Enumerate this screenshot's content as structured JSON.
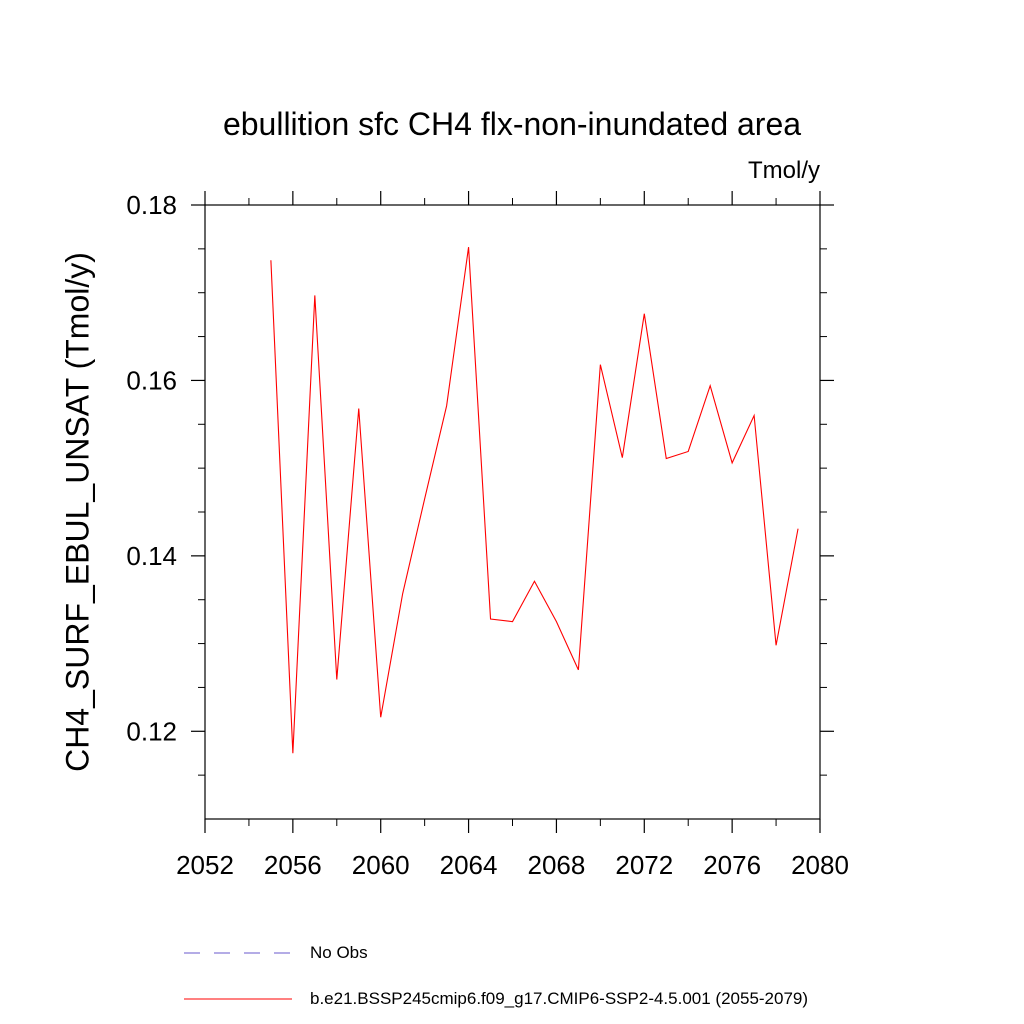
{
  "chart_data": {
    "type": "line",
    "title": "ebullition sfc CH4 flx-non-inundated area",
    "units_label": "Tmol/y",
    "ylabel": "CH4_SURF_EBUL_UNSAT  (Tmol/y)",
    "xlabel": "",
    "xlim": [
      2052,
      2080
    ],
    "ylim": [
      0.11,
      0.18
    ],
    "x_ticks": [
      2052,
      2056,
      2060,
      2064,
      2068,
      2072,
      2076,
      2080
    ],
    "y_ticks": [
      0.12,
      0.14,
      0.16,
      0.18
    ],
    "x_tick_labels": [
      "2052",
      "2056",
      "2060",
      "2064",
      "2068",
      "2072",
      "2076",
      "2080"
    ],
    "y_tick_labels": [
      "0.12",
      "0.14",
      "0.16",
      "0.18"
    ],
    "grid": false,
    "legend_placement": "bottom",
    "series": [
      {
        "name": "b.e21.BSSP245cmip6.f09_g17.CMIP6-SSP2-4.5.001 (2055-2079)",
        "color": "#ff0000",
        "style": "solid",
        "x": [
          2055,
          2056,
          2057,
          2058,
          2059,
          2060,
          2061,
          2062,
          2063,
          2064,
          2065,
          2066,
          2067,
          2068,
          2069,
          2070,
          2071,
          2072,
          2073,
          2074,
          2075,
          2076,
          2077,
          2078,
          2079
        ],
        "values": [
          0.1737,
          0.1175,
          0.1697,
          0.1259,
          0.1568,
          0.1216,
          0.1357,
          0.1465,
          0.1571,
          0.1752,
          0.1328,
          0.1325,
          0.1371,
          0.1325,
          0.127,
          0.1618,
          0.1512,
          0.1676,
          0.1511,
          0.1519,
          0.1594,
          0.1506,
          0.156,
          0.1298,
          0.1431
        ]
      },
      {
        "name": "No Obs",
        "color": "#6a5acd",
        "style": "dashed",
        "x": [],
        "values": []
      }
    ]
  }
}
